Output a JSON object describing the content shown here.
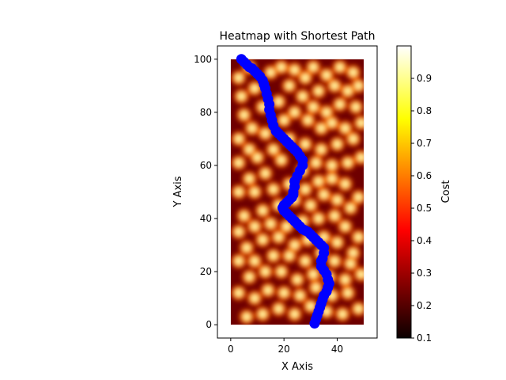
{
  "chart_data": {
    "type": "heatmap",
    "title": "Heatmap with Shortest Path",
    "xlabel": "X Axis",
    "ylabel": "Y Axis",
    "xlim": [
      -5,
      55
    ],
    "ylim": [
      -5,
      105
    ],
    "x_ticks": [
      0,
      20,
      40
    ],
    "y_ticks": [
      0,
      20,
      40,
      60,
      80,
      100
    ],
    "x_tick_labels": [
      "0",
      "20",
      "40"
    ],
    "y_tick_labels": [
      "0",
      "20",
      "40",
      "60",
      "80",
      "100"
    ],
    "heatmap_extent": {
      "x": [
        0,
        50
      ],
      "y": [
        0,
        100
      ]
    },
    "colormap": "hot",
    "colorbar": {
      "label": "Cost",
      "min": 0.1,
      "max": 1.0,
      "ticks": [
        0.1,
        0.2,
        0.3,
        0.4,
        0.5,
        0.6,
        0.7,
        0.8,
        0.9
      ],
      "tick_labels": [
        "0.1",
        "0.2",
        "0.3",
        "0.4",
        "0.5",
        "0.6",
        "0.7",
        "0.8",
        "0.9"
      ]
    },
    "hotspots": [
      [
        3,
        93
      ],
      [
        7,
        97
      ],
      [
        9,
        89
      ],
      [
        4,
        86
      ],
      [
        12,
        82
      ],
      [
        5,
        79
      ],
      [
        8,
        74
      ],
      [
        3,
        70
      ],
      [
        15,
        95
      ],
      [
        19,
        97
      ],
      [
        24,
        96
      ],
      [
        28,
        93
      ],
      [
        31,
        97
      ],
      [
        36,
        94
      ],
      [
        41,
        97
      ],
      [
        46,
        95
      ],
      [
        48,
        90
      ],
      [
        44,
        88
      ],
      [
        39,
        90
      ],
      [
        33,
        88
      ],
      [
        27,
        86
      ],
      [
        22,
        90
      ],
      [
        18,
        84
      ],
      [
        24,
        80
      ],
      [
        31,
        82
      ],
      [
        36,
        80
      ],
      [
        41,
        83
      ],
      [
        47,
        82
      ],
      [
        49,
        76
      ],
      [
        43,
        74
      ],
      [
        38,
        76
      ],
      [
        34,
        74
      ],
      [
        29,
        77
      ],
      [
        20,
        77
      ],
      [
        13,
        72
      ],
      [
        7,
        66
      ],
      [
        3,
        61
      ],
      [
        10,
        63
      ],
      [
        16,
        66
      ],
      [
        22,
        70
      ],
      [
        28,
        68
      ],
      [
        34,
        66
      ],
      [
        40,
        68
      ],
      [
        46,
        70
      ],
      [
        49,
        63
      ],
      [
        44,
        61
      ],
      [
        38,
        60
      ],
      [
        32,
        61
      ],
      [
        27,
        58
      ],
      [
        19,
        62
      ],
      [
        13,
        57
      ],
      [
        7,
        55
      ],
      [
        3,
        50
      ],
      [
        9,
        50
      ],
      [
        16,
        51
      ],
      [
        22,
        53
      ],
      [
        28,
        51
      ],
      [
        33,
        54
      ],
      [
        38,
        55
      ],
      [
        43,
        53
      ],
      [
        48,
        48
      ],
      [
        45,
        44
      ],
      [
        40,
        47
      ],
      [
        35,
        49
      ],
      [
        30,
        45
      ],
      [
        24,
        47
      ],
      [
        18,
        45
      ],
      [
        12,
        43
      ],
      [
        5,
        41
      ],
      [
        3,
        35
      ],
      [
        9,
        37
      ],
      [
        15,
        38
      ],
      [
        21,
        37
      ],
      [
        27,
        39
      ],
      [
        33,
        40
      ],
      [
        39,
        41
      ],
      [
        43,
        37
      ],
      [
        48,
        33
      ],
      [
        46,
        27
      ],
      [
        40,
        31
      ],
      [
        35,
        33
      ],
      [
        29,
        32
      ],
      [
        24,
        30
      ],
      [
        18,
        33
      ],
      [
        12,
        32
      ],
      [
        6,
        29
      ],
      [
        3,
        24
      ],
      [
        9,
        24
      ],
      [
        16,
        26
      ],
      [
        22,
        26
      ],
      [
        28,
        24
      ],
      [
        34,
        27
      ],
      [
        39,
        24
      ],
      [
        45,
        23
      ],
      [
        49,
        19
      ],
      [
        43,
        17
      ],
      [
        37,
        18
      ],
      [
        31,
        19
      ],
      [
        25,
        17
      ],
      [
        19,
        20
      ],
      [
        13,
        20
      ],
      [
        7,
        18
      ],
      [
        3,
        12
      ],
      [
        9,
        10
      ],
      [
        14,
        13
      ],
      [
        20,
        12
      ],
      [
        26,
        11
      ],
      [
        32,
        14
      ],
      [
        38,
        11
      ],
      [
        44,
        12
      ],
      [
        48,
        6
      ],
      [
        42,
        4
      ],
      [
        36,
        5
      ],
      [
        30,
        7
      ],
      [
        24,
        4
      ],
      [
        18,
        6
      ],
      [
        12,
        4
      ],
      [
        6,
        3
      ]
    ],
    "series": [
      {
        "color": "#0000ff",
        "x": [
          4,
          5,
          6,
          7,
          8,
          9,
          10,
          11,
          12,
          12.5,
          13,
          13.5,
          14,
          14.5,
          14.5,
          15,
          15.5,
          16,
          17,
          18,
          19,
          20,
          21,
          22,
          23,
          24,
          25,
          26,
          27,
          27,
          26,
          25,
          24,
          24,
          23.5,
          23.5,
          23,
          22,
          21,
          20,
          19.5,
          20,
          21,
          22,
          23,
          24,
          25,
          26,
          27,
          28,
          29,
          30,
          31,
          32,
          33,
          34,
          35,
          35,
          34.5,
          34,
          34,
          35,
          36,
          36.5,
          37,
          36.5,
          36,
          35,
          34.5,
          34,
          33.5,
          33,
          32.5,
          32,
          31.5
        ],
        "y": [
          100,
          99,
          98,
          97,
          96.5,
          95.5,
          94.5,
          93.5,
          92,
          90.5,
          89,
          87,
          85,
          83,
          81,
          79,
          77,
          75,
          73,
          72,
          71,
          70,
          69,
          68,
          67,
          66,
          65,
          63.5,
          62,
          60,
          58,
          56,
          54,
          52,
          50,
          49,
          48,
          47,
          46,
          45,
          44,
          43,
          42,
          41,
          40,
          39,
          38,
          37,
          36,
          35.5,
          35,
          34,
          33,
          32,
          31,
          30,
          29,
          27,
          25,
          24,
          22,
          20.5,
          19,
          17,
          15.5,
          14,
          12.5,
          11,
          9.5,
          8,
          6.5,
          5,
          3.5,
          2,
          0.5
        ]
      }
    ]
  }
}
